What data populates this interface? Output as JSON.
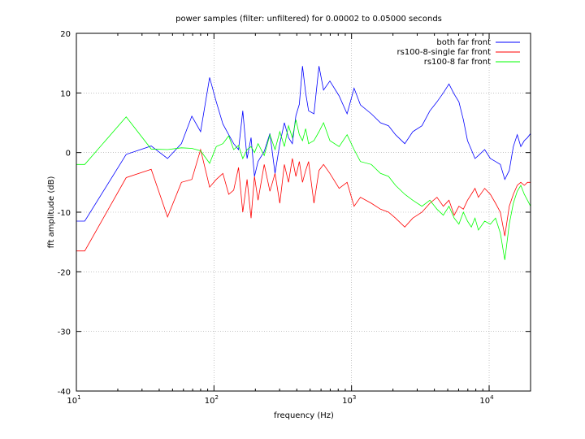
{
  "chart_data": {
    "type": "line",
    "title": "power samples (filter: unfiltered) for 0.00002 to 0.05000 seconds",
    "xlabel": "frequency (Hz)",
    "ylabel": "fft amplitude (dB)",
    "xscale": "log",
    "xlim": [
      10,
      20000
    ],
    "ylim": [
      -40,
      20
    ],
    "grid": true,
    "legend_position": "top-right",
    "x_ticks": [
      {
        "value": 10,
        "base": "10",
        "exp": "1"
      },
      {
        "value": 100,
        "base": "10",
        "exp": "2"
      },
      {
        "value": 1000,
        "base": "10",
        "exp": "3"
      },
      {
        "value": 10000,
        "base": "10",
        "exp": "4"
      }
    ],
    "y_ticks": [
      {
        "value": 20,
        "label": "20"
      },
      {
        "value": 10,
        "label": "10"
      },
      {
        "value": 0,
        "label": "0"
      },
      {
        "value": -10,
        "label": "-10"
      },
      {
        "value": -20,
        "label": "-20"
      },
      {
        "value": -30,
        "label": "-30"
      },
      {
        "value": -40,
        "label": "-40"
      }
    ],
    "series": [
      {
        "name": "both far front",
        "color": "#0000ff",
        "points": [
          [
            10,
            -11.5
          ],
          [
            11.5,
            -11.5
          ],
          [
            23,
            -0.3
          ],
          [
            35,
            1.1
          ],
          [
            46,
            -1.0
          ],
          [
            58,
            1.5
          ],
          [
            69,
            6.1
          ],
          [
            80,
            3.5
          ],
          [
            93,
            12.6
          ],
          [
            104,
            8.5
          ],
          [
            116,
            4.8
          ],
          [
            128,
            3.0
          ],
          [
            139,
            1.5
          ],
          [
            151,
            0.5
          ],
          [
            162,
            7.0
          ],
          [
            174,
            -1.0
          ],
          [
            186,
            2.5
          ],
          [
            197,
            -4.0
          ],
          [
            209,
            -1.5
          ],
          [
            232,
            0.2
          ],
          [
            255,
            3.2
          ],
          [
            278,
            -3.5
          ],
          [
            301,
            1.5
          ],
          [
            325,
            5.0
          ],
          [
            348,
            2.5
          ],
          [
            371,
            1.5
          ],
          [
            394,
            6.2
          ],
          [
            417,
            8.1
          ],
          [
            440,
            14.5
          ],
          [
            464,
            10.0
          ],
          [
            487,
            7.0
          ],
          [
            533,
            6.5
          ],
          [
            580,
            14.5
          ],
          [
            626,
            10.5
          ],
          [
            696,
            12.0
          ],
          [
            812,
            9.5
          ],
          [
            928,
            6.5
          ],
          [
            1044,
            10.8
          ],
          [
            1160,
            8.0
          ],
          [
            1392,
            6.5
          ],
          [
            1624,
            5.0
          ],
          [
            1856,
            4.5
          ],
          [
            2088,
            3.0
          ],
          [
            2436,
            1.5
          ],
          [
            2784,
            3.5
          ],
          [
            3248,
            4.5
          ],
          [
            3712,
            7.0
          ],
          [
            4176,
            8.5
          ],
          [
            4640,
            10.0
          ],
          [
            5104,
            11.5
          ],
          [
            5568,
            9.8
          ],
          [
            6032,
            8.5
          ],
          [
            6496,
            5.5
          ],
          [
            6960,
            2.0
          ],
          [
            7424,
            0.5
          ],
          [
            7888,
            -1.0
          ],
          [
            8352,
            -0.5
          ],
          [
            9280,
            0.5
          ],
          [
            10208,
            -1.0
          ],
          [
            11136,
            -1.5
          ],
          [
            12064,
            -2.0
          ],
          [
            13000,
            -4.5
          ],
          [
            14000,
            -3.0
          ],
          [
            15000,
            1.0
          ],
          [
            16000,
            3.0
          ],
          [
            17000,
            1.0
          ],
          [
            18000,
            2.0
          ],
          [
            19000,
            2.5
          ],
          [
            20000,
            3.2
          ]
        ]
      },
      {
        "name": "rs100-8-single far front",
        "color": "#ff0000",
        "points": [
          [
            10,
            -16.5
          ],
          [
            11.5,
            -16.5
          ],
          [
            23,
            -4.2
          ],
          [
            35,
            -2.8
          ],
          [
            46,
            -10.8
          ],
          [
            58,
            -5.0
          ],
          [
            69,
            -4.5
          ],
          [
            80,
            0.5
          ],
          [
            93,
            -5.8
          ],
          [
            104,
            -4.5
          ],
          [
            116,
            -3.5
          ],
          [
            128,
            -7.0
          ],
          [
            139,
            -6.3
          ],
          [
            151,
            -2.5
          ],
          [
            162,
            -10.0
          ],
          [
            174,
            -4.5
          ],
          [
            186,
            -11.0
          ],
          [
            197,
            -4.0
          ],
          [
            209,
            -8.0
          ],
          [
            232,
            -2.0
          ],
          [
            255,
            -6.5
          ],
          [
            278,
            -3.5
          ],
          [
            301,
            -8.5
          ],
          [
            325,
            -2.0
          ],
          [
            348,
            -5.0
          ],
          [
            371,
            -1.0
          ],
          [
            394,
            -4.0
          ],
          [
            417,
            -1.5
          ],
          [
            440,
            -5.0
          ],
          [
            464,
            -3.0
          ],
          [
            487,
            -1.5
          ],
          [
            533,
            -8.5
          ],
          [
            580,
            -3.0
          ],
          [
            626,
            -2.0
          ],
          [
            696,
            -3.5
          ],
          [
            812,
            -6.0
          ],
          [
            928,
            -5.0
          ],
          [
            1044,
            -9.0
          ],
          [
            1160,
            -7.5
          ],
          [
            1392,
            -8.5
          ],
          [
            1624,
            -9.5
          ],
          [
            1856,
            -10.0
          ],
          [
            2088,
            -11.0
          ],
          [
            2436,
            -12.5
          ],
          [
            2784,
            -11.0
          ],
          [
            3248,
            -10.0
          ],
          [
            3712,
            -8.5
          ],
          [
            4176,
            -7.5
          ],
          [
            4640,
            -9.0
          ],
          [
            5104,
            -8.0
          ],
          [
            5568,
            -10.5
          ],
          [
            6032,
            -9.0
          ],
          [
            6496,
            -9.5
          ],
          [
            6960,
            -8.0
          ],
          [
            7424,
            -7.0
          ],
          [
            7888,
            -6.0
          ],
          [
            8352,
            -7.5
          ],
          [
            9280,
            -6.0
          ],
          [
            10208,
            -7.0
          ],
          [
            11136,
            -8.5
          ],
          [
            12064,
            -10.0
          ],
          [
            13000,
            -14.0
          ],
          [
            14000,
            -9.0
          ],
          [
            15000,
            -7.0
          ],
          [
            16000,
            -5.5
          ],
          [
            17000,
            -5.0
          ],
          [
            18000,
            -5.5
          ],
          [
            19000,
            -5.0
          ],
          [
            20000,
            -5.0
          ]
        ]
      },
      {
        "name": "rs100-8 far front",
        "color": "#00ff00",
        "points": [
          [
            10,
            -2.0
          ],
          [
            11.5,
            -2.0
          ],
          [
            23,
            6.0
          ],
          [
            35,
            0.6
          ],
          [
            46,
            0.5
          ],
          [
            58,
            0.8
          ],
          [
            69,
            0.7
          ],
          [
            80,
            0.3
          ],
          [
            93,
            -1.8
          ],
          [
            104,
            1.0
          ],
          [
            116,
            1.5
          ],
          [
            128,
            2.8
          ],
          [
            139,
            0.5
          ],
          [
            151,
            1.2
          ],
          [
            162,
            -1.0
          ],
          [
            174,
            0.5
          ],
          [
            186,
            1.0
          ],
          [
            197,
            0.0
          ],
          [
            209,
            1.5
          ],
          [
            232,
            -0.5
          ],
          [
            255,
            3.0
          ],
          [
            278,
            0.5
          ],
          [
            301,
            3.5
          ],
          [
            325,
            1.0
          ],
          [
            348,
            4.5
          ],
          [
            371,
            2.5
          ],
          [
            394,
            5.5
          ],
          [
            417,
            3.0
          ],
          [
            440,
            2.0
          ],
          [
            464,
            4.0
          ],
          [
            487,
            1.5
          ],
          [
            533,
            2.0
          ],
          [
            580,
            3.5
          ],
          [
            626,
            5.0
          ],
          [
            696,
            2.0
          ],
          [
            812,
            1.0
          ],
          [
            928,
            3.0
          ],
          [
            1044,
            0.5
          ],
          [
            1160,
            -1.5
          ],
          [
            1392,
            -2.0
          ],
          [
            1624,
            -3.5
          ],
          [
            1856,
            -4.0
          ],
          [
            2088,
            -5.5
          ],
          [
            2436,
            -7.0
          ],
          [
            2784,
            -8.0
          ],
          [
            3248,
            -9.0
          ],
          [
            3712,
            -8.0
          ],
          [
            4176,
            -9.5
          ],
          [
            4640,
            -10.5
          ],
          [
            5104,
            -9.0
          ],
          [
            5568,
            -11.0
          ],
          [
            6032,
            -12.0
          ],
          [
            6496,
            -10.0
          ],
          [
            6960,
            -11.5
          ],
          [
            7424,
            -12.5
          ],
          [
            7888,
            -11.0
          ],
          [
            8352,
            -13.0
          ],
          [
            9280,
            -11.5
          ],
          [
            10208,
            -12.0
          ],
          [
            11136,
            -11.0
          ],
          [
            12064,
            -13.5
          ],
          [
            13000,
            -18.0
          ],
          [
            14000,
            -12.0
          ],
          [
            15000,
            -8.5
          ],
          [
            16000,
            -6.5
          ],
          [
            17000,
            -5.5
          ],
          [
            18000,
            -7.0
          ],
          [
            19000,
            -8.0
          ],
          [
            20000,
            -9.0
          ]
        ]
      }
    ]
  }
}
